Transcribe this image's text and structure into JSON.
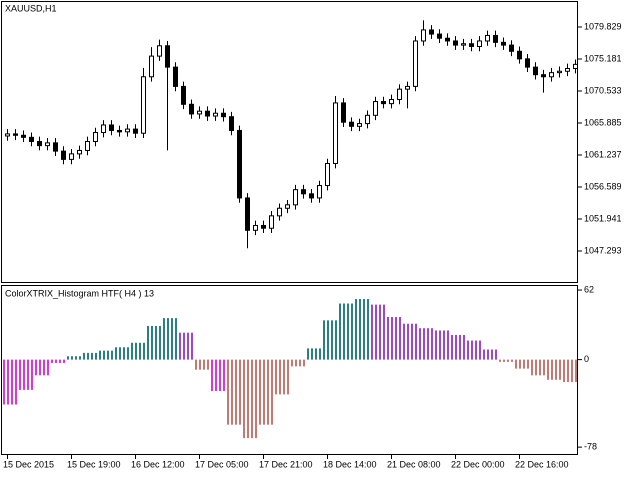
{
  "chart_data": [
    {
      "type": "candlestick",
      "title": "XAUUSD,H1",
      "open": [
        1064.0,
        1064.3,
        1064.1,
        1063.8,
        1063.2,
        1062.6,
        1063.0,
        1061.8,
        1060.6,
        1061.4,
        1061.9,
        1063.2,
        1064.5,
        1065.6,
        1064.8,
        1064.6,
        1065.0,
        1064.4,
        1072.6,
        1075.6,
        1077.1,
        1074.0,
        1071.2,
        1068.6,
        1067.2,
        1067.6,
        1066.9,
        1067.3,
        1066.8,
        1064.8,
        1055.0,
        1050.3,
        1051.0,
        1050.6,
        1052.4,
        1053.5,
        1054.0,
        1056.2,
        1055.6,
        1055.0,
        1056.8,
        1060.0,
        1068.8,
        1066.0,
        1065.4,
        1065.8,
        1067.0,
        1069.0,
        1068.7,
        1069.3,
        1070.8,
        1071.2,
        1077.8,
        1079.4,
        1078.8,
        1078.2,
        1077.8,
        1077.2,
        1077.4,
        1077.0,
        1077.8,
        1078.6,
        1077.6,
        1077.2,
        1076.3,
        1075.2,
        1074.0,
        1072.9,
        1072.6,
        1073.2,
        1073.4,
        1073.8
      ],
      "high": [
        1065.0,
        1065.0,
        1064.8,
        1064.5,
        1063.9,
        1063.7,
        1063.7,
        1062.5,
        1062.1,
        1062.6,
        1063.9,
        1065.2,
        1066.3,
        1066.3,
        1065.5,
        1065.7,
        1065.7,
        1073.9,
        1076.9,
        1078.0,
        1077.8,
        1074.7,
        1071.9,
        1069.3,
        1068.3,
        1068.3,
        1068.0,
        1068.0,
        1067.5,
        1065.5,
        1055.7,
        1051.7,
        1051.7,
        1053.1,
        1054.2,
        1054.7,
        1056.9,
        1056.9,
        1056.3,
        1057.5,
        1060.7,
        1069.8,
        1069.5,
        1066.7,
        1066.5,
        1067.7,
        1069.7,
        1069.7,
        1070.0,
        1071.5,
        1071.9,
        1078.5,
        1080.8,
        1080.1,
        1079.5,
        1078.9,
        1078.5,
        1078.1,
        1078.1,
        1078.5,
        1079.3,
        1079.3,
        1078.3,
        1077.9,
        1077.0,
        1075.9,
        1074.7,
        1073.6,
        1073.9,
        1074.1,
        1074.5,
        1075.1
      ],
      "low": [
        1063.3,
        1063.4,
        1063.1,
        1062.5,
        1061.9,
        1061.9,
        1061.1,
        1059.9,
        1059.9,
        1060.7,
        1061.2,
        1062.5,
        1063.8,
        1064.1,
        1063.9,
        1063.9,
        1063.7,
        1063.7,
        1071.9,
        1074.9,
        1061.9,
        1070.5,
        1067.9,
        1066.5,
        1066.5,
        1066.2,
        1066.2,
        1066.1,
        1064.1,
        1054.3,
        1047.7,
        1049.6,
        1049.9,
        1049.9,
        1051.7,
        1052.8,
        1053.3,
        1054.9,
        1054.3,
        1054.3,
        1056.1,
        1059.3,
        1065.3,
        1064.7,
        1064.7,
        1065.1,
        1066.3,
        1068.0,
        1068.0,
        1068.6,
        1068.0,
        1070.5,
        1077.1,
        1078.1,
        1077.5,
        1077.1,
        1076.5,
        1076.5,
        1076.3,
        1076.3,
        1077.1,
        1076.9,
        1076.5,
        1075.6,
        1074.5,
        1073.3,
        1072.2,
        1070.3,
        1071.9,
        1072.5,
        1072.7,
        1073.1
      ],
      "close": [
        1064.3,
        1064.1,
        1063.8,
        1063.2,
        1062.6,
        1063.0,
        1061.8,
        1060.6,
        1061.4,
        1061.9,
        1063.2,
        1064.5,
        1065.6,
        1064.8,
        1064.6,
        1065.0,
        1064.4,
        1072.6,
        1075.6,
        1077.1,
        1074.0,
        1071.2,
        1068.6,
        1067.2,
        1067.6,
        1066.9,
        1067.3,
        1066.8,
        1064.8,
        1055.0,
        1050.3,
        1051.0,
        1050.6,
        1052.4,
        1053.5,
        1054.0,
        1056.2,
        1055.6,
        1055.0,
        1056.8,
        1060.0,
        1068.8,
        1066.0,
        1065.4,
        1065.8,
        1067.0,
        1069.0,
        1068.7,
        1069.3,
        1070.8,
        1071.2,
        1077.8,
        1079.4,
        1078.8,
        1078.2,
        1077.8,
        1077.2,
        1077.4,
        1077.0,
        1077.8,
        1078.6,
        1077.6,
        1077.2,
        1076.3,
        1075.2,
        1074.0,
        1072.9,
        1072.6,
        1073.2,
        1073.4,
        1073.8,
        1074.4
      ],
      "ylim": [
        1042.79,
        1083.46
      ],
      "yticks": [
        1079.829,
        1075.181,
        1070.533,
        1065.885,
        1061.237,
        1056.589,
        1051.941,
        1047.293
      ],
      "xticks": [
        {
          "value": 0,
          "label": "15 Dec 2015"
        },
        {
          "value": 8,
          "label": "15 Dec 19:00"
        },
        {
          "value": 16,
          "label": "16 Dec 12:00"
        },
        {
          "value": 24,
          "label": "17 Dec 05:00"
        },
        {
          "value": 32,
          "label": "17 Dec 21:00"
        },
        {
          "value": 40,
          "label": "18 Dec 14:00"
        },
        {
          "value": 48,
          "label": "21 Dec 08:00"
        },
        {
          "value": 56,
          "label": "22 Dec 00:00"
        },
        {
          "value": 64,
          "label": "22 Dec 16:00"
        }
      ],
      "color": "#000000"
    },
    {
      "type": "histogram",
      "title": "ColorXTRIX_Histogram HTF( H4 ) 13",
      "values": [
        -40,
        -27,
        -14,
        -3,
        3,
        6,
        8,
        11,
        15,
        30,
        37,
        24,
        -9,
        -28,
        -58,
        -70,
        -58,
        -31,
        -6,
        10,
        35,
        50,
        54,
        49,
        38,
        32,
        28,
        26,
        22,
        17,
        9,
        -2,
        -8,
        -14,
        -18,
        -20
      ],
      "colors": [
        "#d63ad6",
        "#d63ad6",
        "#d63ad6",
        "#d63ad6",
        "#2a8080",
        "#2a8080",
        "#2a8080",
        "#2a8080",
        "#2a8080",
        "#2a8080",
        "#2a8080",
        "#9a48d0",
        "#c47a72",
        "#d63ad6",
        "#c47a72",
        "#c47a72",
        "#c47a72",
        "#c47a72",
        "#c47a72",
        "#2a8080",
        "#2a8080",
        "#2a8080",
        "#2a8080",
        "#9a48d0",
        "#9a48d0",
        "#9a48d0",
        "#9a48d0",
        "#9a48d0",
        "#9a48d0",
        "#9a48d0",
        "#9a48d0",
        "#c47a72",
        "#c47a72",
        "#c47a72",
        "#c47a72",
        "#c47a72"
      ],
      "ylim": [
        -85,
        65.6
      ],
      "yticks": [
        62,
        0,
        -78
      ]
    }
  ]
}
